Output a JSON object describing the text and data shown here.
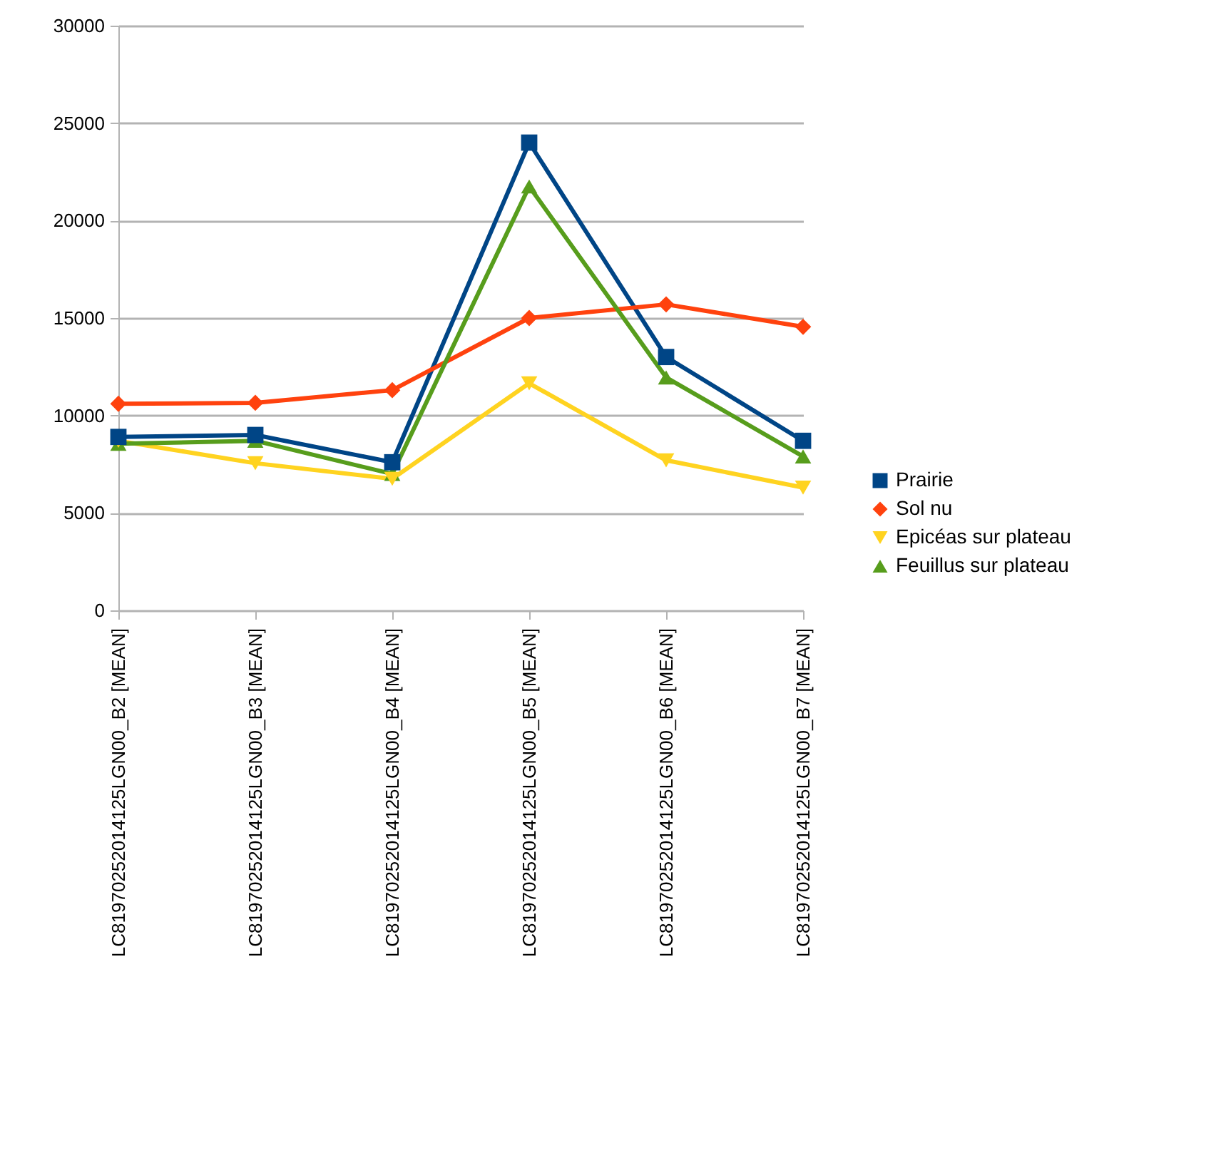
{
  "chart_data": {
    "type": "line",
    "categories": [
      "LC81970252014125LGN00_B2 [MEAN]",
      "LC81970252014125LGN00_B3 [MEAN]",
      "LC81970252014125LGN00_B4 [MEAN]",
      "LC81970252014125LGN00_B5 [MEAN]",
      "LC81970252014125LGN00_B6 [MEAN]",
      "LC81970252014125LGN00_B7 [MEAN]"
    ],
    "series": [
      {
        "name": "Prairie",
        "color": "#004586",
        "marker": "square",
        "values": [
          8900,
          9000,
          7600,
          24000,
          13000,
          8700
        ]
      },
      {
        "name": "Sol nu",
        "color": "#ff420e",
        "marker": "diamond",
        "values": [
          10600,
          10650,
          11300,
          15000,
          15700,
          14550
        ]
      },
      {
        "name": "Epicéas sur plateau",
        "color": "#ffd320",
        "marker": "triangle-down",
        "values": [
          8700,
          7550,
          6750,
          11650,
          7700,
          6300
        ]
      },
      {
        "name": "Feuillus sur plateau",
        "color": "#579d1c",
        "marker": "triangle",
        "values": [
          8550,
          8700,
          7000,
          21750,
          11950,
          7900
        ]
      }
    ],
    "ylim": [
      0,
      30000
    ],
    "yticks": [
      0,
      5000,
      10000,
      15000,
      20000,
      25000,
      30000
    ],
    "grid": "y",
    "legend": "right",
    "line_style": "solid"
  }
}
